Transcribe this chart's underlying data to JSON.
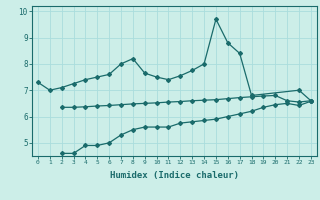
{
  "xlabel": "Humidex (Indice chaleur)",
  "background_color": "#cceee8",
  "line_color": "#1a6b6b",
  "grid_color": "#aadddd",
  "xlim": [
    -0.5,
    23.5
  ],
  "ylim": [
    4.5,
    10.2
  ],
  "x_ticks": [
    0,
    1,
    2,
    3,
    4,
    5,
    6,
    7,
    8,
    9,
    10,
    11,
    12,
    13,
    14,
    15,
    16,
    17,
    18,
    19,
    20,
    21,
    22,
    23
  ],
  "y_ticks": [
    5,
    6,
    7,
    8,
    9,
    10
  ],
  "line_top_x": [
    0,
    1,
    2,
    3,
    4,
    5,
    6,
    7,
    8,
    9,
    10,
    11,
    12,
    13,
    14,
    15,
    16,
    17,
    18,
    22,
    23
  ],
  "line_top_y": [
    7.3,
    7.0,
    7.1,
    7.25,
    7.4,
    7.5,
    7.6,
    8.0,
    8.2,
    7.65,
    7.5,
    7.4,
    7.55,
    7.75,
    8.0,
    9.7,
    8.8,
    8.4,
    6.8,
    7.0,
    6.6
  ],
  "line_mid_x": [
    2,
    3,
    4,
    5,
    6,
    7,
    8,
    9,
    10,
    11,
    12,
    13,
    14,
    15,
    16,
    17,
    18,
    19,
    20,
    21,
    22,
    23
  ],
  "line_mid_y": [
    6.35,
    6.35,
    6.37,
    6.4,
    6.42,
    6.45,
    6.48,
    6.5,
    6.52,
    6.55,
    6.57,
    6.6,
    6.62,
    6.64,
    6.68,
    6.72,
    6.75,
    6.78,
    6.8,
    6.6,
    6.55,
    6.6
  ],
  "line_low_x": [
    2,
    3,
    4,
    5,
    6,
    7,
    8,
    9,
    10,
    11,
    12,
    13,
    14,
    15,
    16,
    17,
    18,
    19,
    20,
    21,
    22,
    23
  ],
  "line_low_y": [
    4.6,
    4.6,
    4.9,
    4.9,
    5.0,
    5.3,
    5.5,
    5.6,
    5.6,
    5.6,
    5.75,
    5.8,
    5.85,
    5.9,
    6.0,
    6.1,
    6.2,
    6.35,
    6.45,
    6.5,
    6.42,
    6.58
  ]
}
